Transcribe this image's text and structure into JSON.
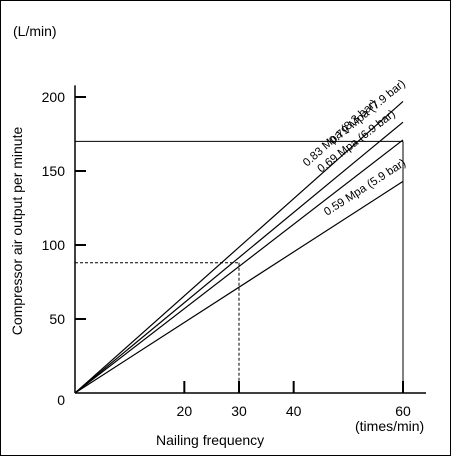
{
  "chart_data": {
    "type": "line",
    "title": "",
    "xlabel": "Nailing frequency",
    "xunit": "(times/min)",
    "ylabel": "Compressor air output per minute",
    "yunit": "(L/min)",
    "xlim": [
      0,
      60
    ],
    "ylim": [
      0,
      220
    ],
    "xticks": [
      20,
      30,
      40,
      60
    ],
    "yticks": [
      0,
      50,
      100,
      150,
      200
    ],
    "grid": false,
    "series": [
      {
        "name": "0.83 Mpa (8.3 bar)",
        "x": [
          0,
          60
        ],
        "y": [
          0,
          197
        ]
      },
      {
        "name": "0.79 Mpa (7.9 bar)",
        "x": [
          0,
          60
        ],
        "y": [
          0,
          183
        ]
      },
      {
        "name": "0.69 Mpa (6.9 bar)",
        "x": [
          0,
          60
        ],
        "y": [
          0,
          171
        ]
      },
      {
        "name": "0.59 Mpa (5.9 bar)",
        "x": [
          0,
          60
        ],
        "y": [
          0,
          143
        ]
      }
    ],
    "reference_lines": [
      {
        "style": "solid",
        "x": 60,
        "y": 170
      },
      {
        "style": "dashed",
        "x": 30,
        "y": 88
      }
    ]
  }
}
